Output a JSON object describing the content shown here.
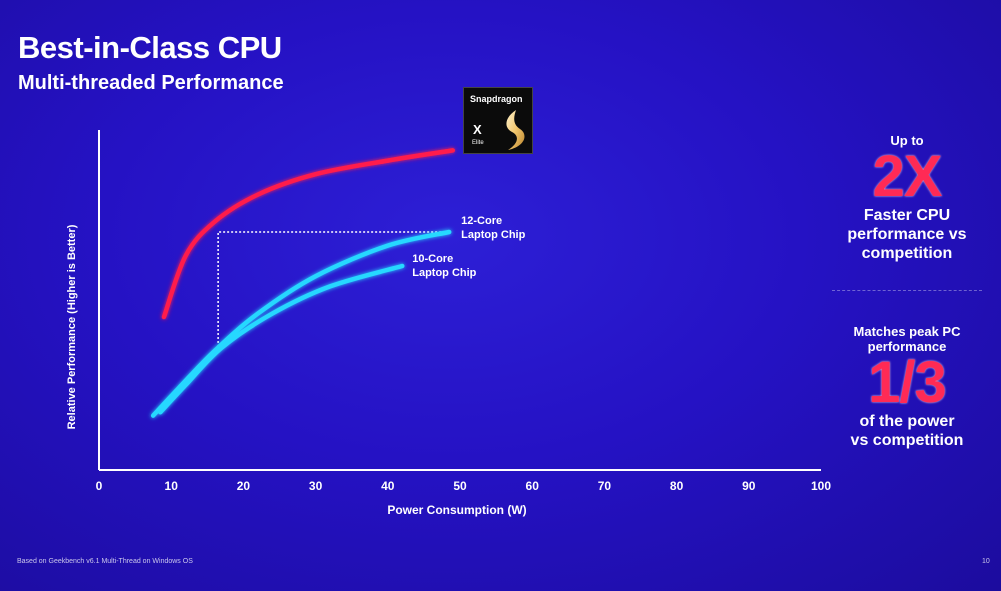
{
  "header": {
    "title": "Best-in-Class CPU",
    "subtitle": "Multi-threaded Performance"
  },
  "badge": {
    "brand": "Snapdragon",
    "model": "X",
    "tier": "Elite"
  },
  "callouts": {
    "top_prefix": "Up to",
    "top_stat": "2X",
    "top_line1": "Faster CPU",
    "top_line2": "performance vs",
    "top_line3": "competition",
    "bottom_prefix_line1": "Matches peak PC",
    "bottom_prefix_line2": "performance",
    "bottom_stat": "1/3",
    "bottom_line1": "of the power",
    "bottom_line2": "vs competition"
  },
  "footer": {
    "footnote": "Based on Geekbench v6.1 Multi-Thread on Windows OS",
    "page": "10"
  },
  "colors": {
    "snapdragon_line": "#ff1f4b",
    "competitor_line": "#27d8ff",
    "axis": "#ffffff",
    "accent_stat": "#ff2a55"
  },
  "chart_data": {
    "type": "line",
    "xlabel": "Power Consumption (W)",
    "ylabel": "Relative Performance (Higher is Better)",
    "xlim": [
      0,
      100
    ],
    "ylim": [
      0,
      100
    ],
    "xticks": [
      0,
      10,
      20,
      30,
      40,
      50,
      60,
      70,
      80,
      90,
      100
    ],
    "y_tick_labels_shown": false,
    "grid": false,
    "series": [
      {
        "name": "Snapdragon X Elite",
        "color": "#ff1f4b",
        "x": [
          9,
          12,
          16,
          22,
          30,
          40,
          49
        ],
        "y": [
          45,
          63,
          73,
          81,
          87,
          91,
          94
        ]
      },
      {
        "name": "12-Core Laptop Chip",
        "color": "#27d8ff",
        "x": [
          7.5,
          11,
          16,
          22,
          30,
          40,
          48.5
        ],
        "y": [
          16,
          24,
          35,
          46,
          57,
          66,
          70
        ]
      },
      {
        "name": "10-Core Laptop Chip",
        "color": "#27d8ff",
        "x": [
          8.5,
          12,
          17,
          24,
          32,
          42
        ],
        "y": [
          17,
          25,
          36,
          46,
          54,
          60
        ]
      }
    ],
    "series_labels": [
      {
        "line1": "12-Core",
        "line2": "Laptop Chip"
      },
      {
        "line1": "10-Core",
        "line2": "Laptop Chip"
      }
    ],
    "reference_lines": {
      "power_w": 16.5,
      "performance": 70,
      "peak_power_w": 48.5,
      "baseline_performance": 35
    }
  }
}
